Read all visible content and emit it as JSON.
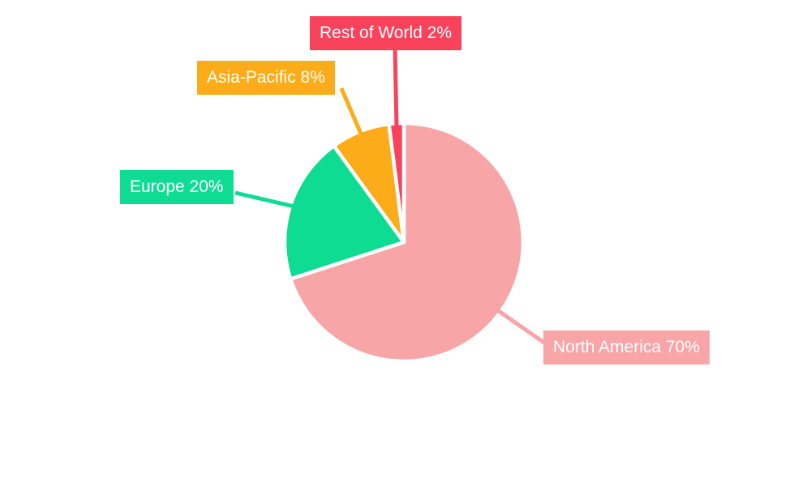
{
  "chart_data": {
    "type": "pie",
    "title": "",
    "unit": "%",
    "categories": [
      "North America",
      "Europe",
      "Asia-Pacific",
      "Rest of World"
    ],
    "values": [
      70,
      20,
      8,
      2
    ],
    "series": [
      {
        "name": "North America",
        "value": 70,
        "color": "#F8A5A7",
        "label": "North America 70%"
      },
      {
        "name": "Europe",
        "value": 20,
        "color": "#0EDC92",
        "label": "Europe 20%"
      },
      {
        "name": "Asia-Pacific",
        "value": 8,
        "color": "#FBAC18",
        "label": "Asia-Pacific 8%"
      },
      {
        "name": "Rest of World",
        "value": 2,
        "color": "#F9435C",
        "label": "Rest of World 2%"
      }
    ],
    "start_angle_deg": 0,
    "direction": "clockwise",
    "legend_position": "none",
    "grid": false,
    "background_color": "#FFFFFF",
    "slice_border_color": "#FFFFFF",
    "label_style": "callout-boxes",
    "label_text_color": "#FFFFFF"
  }
}
